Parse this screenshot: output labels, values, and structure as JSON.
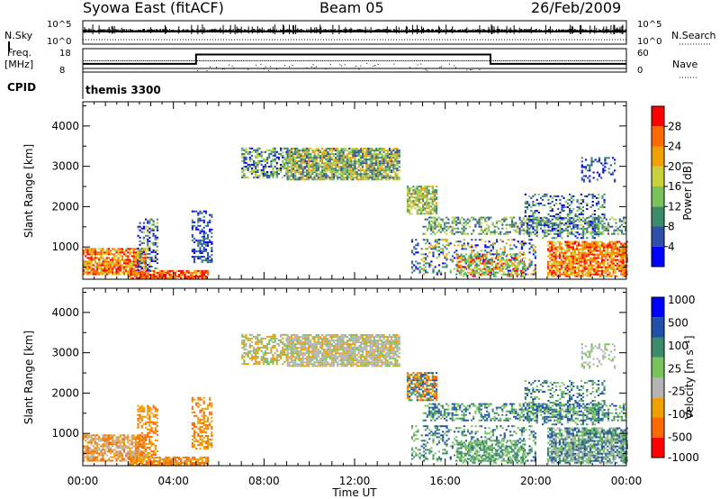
{
  "header": {
    "title": "Syowa East (fitACF)",
    "beam": "Beam 05",
    "date": "26/Feb/2009"
  },
  "strip_labels": {
    "nsky": "N.Sky",
    "nsky_top": "10^5",
    "nsky_bottom": "10^0",
    "nsearch": "N.Search",
    "nsearch_top": "10^5",
    "nsearch_bottom": "10^0",
    "freq": "Freq.",
    "freq_unit": "[MHz]",
    "freq_top": "18",
    "freq_bottom": "8",
    "nave": "Nave",
    "nave_top": "60",
    "nave_bottom": "0",
    "cpid": "CPID",
    "cpid_value": "themis 3300"
  },
  "colors": {
    "power": [
      "#0000ff",
      "#2f4fa8",
      "#3c8c6c",
      "#7ac35a",
      "#c8d23c",
      "#f0a000",
      "#ff6a00",
      "#ff0000"
    ],
    "velocity": [
      "#ff0000",
      "#ff6a00",
      "#f0a000",
      "#b4b4b4",
      "#7ac35a",
      "#3c8c6c",
      "#2050a8",
      "#0000ff"
    ]
  },
  "chart_data": [
    {
      "type": "heatmap",
      "name": "power",
      "ylabel": "Slant Range [km]",
      "ylim": [
        200,
        4600
      ],
      "yticks": [
        "1000",
        "2000",
        "3000",
        "4000"
      ],
      "colorbar": {
        "label": "Power [dB]",
        "ticks": [
          "4",
          "8",
          "12",
          "16",
          "20",
          "24",
          "28"
        ]
      },
      "blobs": [
        {
          "t0": 0.0,
          "t1": 2.8,
          "r0": 300,
          "r1": 950,
          "c": [
            5,
            6,
            7,
            4
          ],
          "d": 0.8
        },
        {
          "t0": 2.0,
          "t1": 5.5,
          "r0": 200,
          "r1": 400,
          "c": [
            7,
            6,
            5
          ],
          "d": 0.8
        },
        {
          "t0": 2.4,
          "t1": 3.3,
          "r0": 400,
          "r1": 1700,
          "c": [
            0,
            1,
            2,
            4
          ],
          "d": 0.4
        },
        {
          "t0": 4.8,
          "t1": 5.7,
          "r0": 600,
          "r1": 1900,
          "c": [
            0,
            1,
            2
          ],
          "d": 0.45
        },
        {
          "t0": 7.0,
          "t1": 9.0,
          "r0": 2700,
          "r1": 3450,
          "c": [
            0,
            1,
            2,
            3,
            4
          ],
          "d": 0.6
        },
        {
          "t0": 9.0,
          "t1": 14.0,
          "r0": 2650,
          "r1": 3450,
          "c": [
            1,
            2,
            3,
            4,
            5
          ],
          "d": 0.85
        },
        {
          "t0": 14.3,
          "t1": 15.6,
          "r0": 1800,
          "r1": 2500,
          "c": [
            2,
            3,
            4,
            5
          ],
          "d": 0.75
        },
        {
          "t0": 15.0,
          "t1": 24.0,
          "r0": 1300,
          "r1": 1750,
          "c": [
            1,
            2,
            3,
            4
          ],
          "d": 0.45
        },
        {
          "t0": 14.5,
          "t1": 20.0,
          "r0": 300,
          "r1": 1200,
          "c": [
            0,
            1,
            2,
            3,
            5
          ],
          "d": 0.3
        },
        {
          "t0": 16.5,
          "t1": 19.5,
          "r0": 250,
          "r1": 800,
          "c": [
            2,
            3,
            4,
            5,
            7
          ],
          "d": 0.55
        },
        {
          "t0": 20.5,
          "t1": 24.0,
          "r0": 250,
          "r1": 1150,
          "c": [
            5,
            6,
            7,
            4
          ],
          "d": 0.8
        },
        {
          "t0": 19.5,
          "t1": 23.0,
          "r0": 1200,
          "r1": 2300,
          "c": [
            0,
            1,
            2,
            3
          ],
          "d": 0.3
        },
        {
          "t0": 22.0,
          "t1": 23.5,
          "r0": 2600,
          "r1": 3200,
          "c": [
            0,
            1,
            2
          ],
          "d": 0.25
        }
      ]
    },
    {
      "type": "heatmap",
      "name": "velocity",
      "ylabel": "Slant Range [km]",
      "xlabel": "Time UT",
      "ylim": [
        200,
        4600
      ],
      "yticks": [
        "1000",
        "2000",
        "3000",
        "4000"
      ],
      "xticks": [
        "00:00",
        "04:00",
        "08:00",
        "12:00",
        "16:00",
        "20:00",
        "00:00"
      ],
      "colorbar": {
        "label": "Velocity [m s⁻¹]",
        "ticks": [
          "1000",
          "500",
          "100",
          "25",
          "-25",
          "-100",
          "-500",
          "-1000"
        ]
      },
      "blobs": [
        {
          "t0": 0.0,
          "t1": 2.8,
          "r0": 300,
          "r1": 950,
          "c": [
            1,
            2,
            3
          ],
          "d": 0.75
        },
        {
          "t0": 2.0,
          "t1": 5.5,
          "r0": 200,
          "r1": 400,
          "c": [
            1,
            2
          ],
          "d": 0.8
        },
        {
          "t0": 2.4,
          "t1": 3.3,
          "r0": 400,
          "r1": 1700,
          "c": [
            1,
            2
          ],
          "d": 0.45
        },
        {
          "t0": 4.8,
          "t1": 5.7,
          "r0": 600,
          "r1": 1900,
          "c": [
            1,
            2
          ],
          "d": 0.5
        },
        {
          "t0": 7.0,
          "t1": 9.0,
          "r0": 2700,
          "r1": 3450,
          "c": [
            3,
            4,
            2
          ],
          "d": 0.6
        },
        {
          "t0": 9.0,
          "t1": 14.0,
          "r0": 2650,
          "r1": 3450,
          "c": [
            3,
            3,
            3,
            4,
            2
          ],
          "d": 0.85
        },
        {
          "t0": 14.3,
          "t1": 15.6,
          "r0": 1800,
          "r1": 2500,
          "c": [
            1,
            2,
            5,
            6
          ],
          "d": 0.75
        },
        {
          "t0": 15.0,
          "t1": 24.0,
          "r0": 1300,
          "r1": 1750,
          "c": [
            4,
            5,
            6
          ],
          "d": 0.45
        },
        {
          "t0": 14.5,
          "t1": 20.0,
          "r0": 300,
          "r1": 1200,
          "c": [
            4,
            5,
            6
          ],
          "d": 0.3
        },
        {
          "t0": 16.5,
          "t1": 19.5,
          "r0": 250,
          "r1": 800,
          "c": [
            4,
            5
          ],
          "d": 0.55
        },
        {
          "t0": 20.5,
          "t1": 24.0,
          "r0": 250,
          "r1": 1150,
          "c": [
            4,
            5,
            6,
            3
          ],
          "d": 0.8
        },
        {
          "t0": 19.5,
          "t1": 23.0,
          "r0": 1200,
          "r1": 2300,
          "c": [
            4,
            5,
            6
          ],
          "d": 0.3
        },
        {
          "t0": 22.0,
          "t1": 23.5,
          "r0": 2600,
          "r1": 3200,
          "c": [
            3,
            4
          ],
          "d": 0.25
        }
      ]
    }
  ],
  "freq_steps": [
    {
      "t0": 0,
      "t1": 5,
      "level": 0.35
    },
    {
      "t0": 5,
      "t1": 18,
      "level": 0.75
    },
    {
      "t0": 18,
      "t1": 24,
      "level": 0.35
    }
  ]
}
